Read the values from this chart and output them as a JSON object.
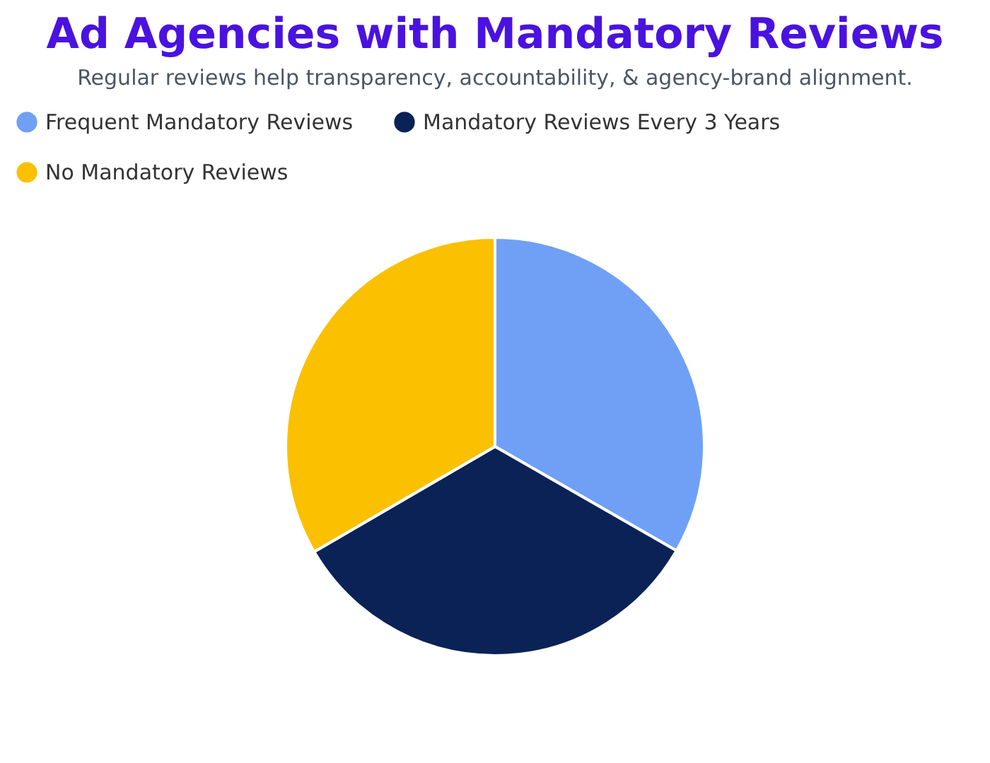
{
  "chart_data": {
    "type": "pie",
    "title": "Ad Agencies with Mandatory Reviews",
    "subtitle": "Regular reviews help transparency, accountability, & agency-brand alignment.",
    "categories": [
      "Frequent Mandatory Reviews",
      "Mandatory Reviews Every 3 Years",
      "No Mandatory Reviews"
    ],
    "values": [
      33.3,
      33.3,
      33.4
    ],
    "colors": [
      "#6fa0f6",
      "#0b2257",
      "#fbc000"
    ],
    "legend": "top"
  }
}
